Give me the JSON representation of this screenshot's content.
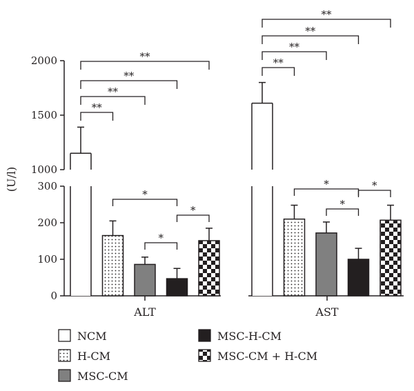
{
  "chart_data": {
    "type": "bar",
    "ylabel": "(U/l)",
    "categories": [
      "ALT",
      "AST"
    ],
    "axis_break": {
      "lower_range": [
        0,
        300
      ],
      "upper_range": [
        1000,
        2000
      ]
    },
    "y_ticks_lower": [
      0,
      100,
      200,
      300
    ],
    "y_ticks_upper": [
      1000,
      1500,
      2000
    ],
    "series": [
      {
        "name": "NCM",
        "pattern": "none",
        "values": [
          1150,
          1610
        ],
        "errors": [
          240,
          190
        ]
      },
      {
        "name": "H-CM",
        "pattern": "dots",
        "values": [
          165,
          210
        ],
        "errors": [
          40,
          38
        ]
      },
      {
        "name": "MSC-CM",
        "pattern": "gray",
        "values": [
          86,
          172
        ],
        "errors": [
          20,
          30
        ]
      },
      {
        "name": "MSC-H-CM",
        "pattern": "black",
        "values": [
          47,
          100
        ],
        "errors": [
          28,
          30
        ]
      },
      {
        "name": "MSC-CM + H-CM",
        "pattern": "checker",
        "values": [
          151,
          207
        ],
        "errors": [
          34,
          41
        ]
      }
    ],
    "significance": [
      {
        "group": 0,
        "from": 0,
        "to": 1,
        "label": "**"
      },
      {
        "group": 0,
        "from": 0,
        "to": 2,
        "label": "**"
      },
      {
        "group": 0,
        "from": 0,
        "to": 3,
        "label": "**"
      },
      {
        "group": 0,
        "from": 0,
        "to": 4,
        "label": "**"
      },
      {
        "group": 0,
        "from": 1,
        "to": 3,
        "label": "*"
      },
      {
        "group": 0,
        "from": 2,
        "to": 3,
        "label": "*"
      },
      {
        "group": 0,
        "from": 3,
        "to": 4,
        "label": "*"
      },
      {
        "group": 1,
        "from": 0,
        "to": 1,
        "label": "**"
      },
      {
        "group": 1,
        "from": 0,
        "to": 2,
        "label": "**"
      },
      {
        "group": 1,
        "from": 0,
        "to": 3,
        "label": "**"
      },
      {
        "group": 1,
        "from": 0,
        "to": 4,
        "label": "**"
      },
      {
        "group": 1,
        "from": 1,
        "to": 3,
        "label": "*"
      },
      {
        "group": 1,
        "from": 2,
        "to": 3,
        "label": "*"
      },
      {
        "group": 1,
        "from": 3,
        "to": 4,
        "label": "*"
      }
    ],
    "colors": {
      "gray": "#808080",
      "black": "#231f20",
      "outline": "#231f20"
    },
    "legend_position": "bottom"
  }
}
